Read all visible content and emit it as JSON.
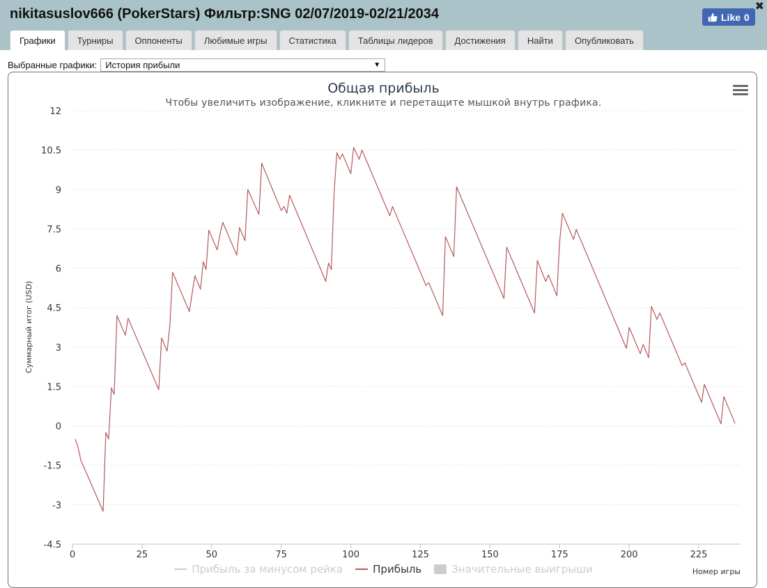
{
  "header": {
    "title": "nikitasuslov666 (PokerStars) Фильтр:SNG 02/07/2019-02/21/2034",
    "close_symbol": "✖",
    "like_label": "Like",
    "like_count": "0"
  },
  "tabs": [
    {
      "label": "Графики",
      "active": true
    },
    {
      "label": "Турниры",
      "active": false
    },
    {
      "label": "Оппоненты",
      "active": false
    },
    {
      "label": "Любимые игры",
      "active": false
    },
    {
      "label": "Статистика",
      "active": false
    },
    {
      "label": "Таблицы лидеров",
      "active": false
    },
    {
      "label": "Достижения",
      "active": false
    },
    {
      "label": "Найти",
      "active": false
    },
    {
      "label": "Опубликовать",
      "active": false
    }
  ],
  "selector": {
    "label": "Выбранные графики:",
    "value": "История прибыли"
  },
  "colors": {
    "series": "#b5575a",
    "grid": "#cccccc",
    "header_bg": "#aac3c9",
    "like_bg": "#4267b2"
  },
  "chart_data": {
    "type": "line",
    "title": "Общая прибыль",
    "subtitle": "Чтобы увеличить изображение, кликните и перетащите мышкой внутрь графика.",
    "xlabel": "Номер игры",
    "ylabel": "Суммарный итог (USD)",
    "xlim": [
      0,
      240
    ],
    "ylim": [
      -4.5,
      12
    ],
    "xticks": [
      0,
      25,
      50,
      75,
      100,
      125,
      150,
      175,
      200,
      225
    ],
    "yticks": [
      -4.5,
      -3,
      -1.5,
      0,
      1.5,
      3,
      4.5,
      6,
      7.5,
      9,
      10.5,
      12
    ],
    "grid": "horizontal-dotted",
    "legend": [
      {
        "name": "Прибыль за минусом рейка",
        "kind": "line",
        "visible": false
      },
      {
        "name": "Прибыль",
        "kind": "line",
        "visible": true
      },
      {
        "name": "Значительные выигрыши",
        "kind": "box",
        "visible": false
      }
    ],
    "series": [
      {
        "name": "Прибыль",
        "points": [
          [
            1,
            -0.5
          ],
          [
            2,
            -0.8
          ],
          [
            3,
            -1.3
          ],
          [
            11,
            -3.25
          ],
          [
            12,
            -0.25
          ],
          [
            13,
            -0.5
          ],
          [
            14,
            1.45
          ],
          [
            15,
            1.2
          ],
          [
            16,
            4.2
          ],
          [
            19,
            3.45
          ],
          [
            20,
            4.1
          ],
          [
            31,
            1.38
          ],
          [
            32,
            3.35
          ],
          [
            34,
            2.85
          ],
          [
            35,
            3.85
          ],
          [
            36,
            5.85
          ],
          [
            42,
            4.35
          ],
          [
            44,
            5.72
          ],
          [
            46,
            5.2
          ],
          [
            47,
            6.25
          ],
          [
            48,
            5.95
          ],
          [
            49,
            7.45
          ],
          [
            52,
            6.7
          ],
          [
            53,
            7.3
          ],
          [
            54,
            7.75
          ],
          [
            59,
            6.5
          ],
          [
            60,
            7.55
          ],
          [
            62,
            7.05
          ],
          [
            63,
            9.0
          ],
          [
            67,
            8.05
          ],
          [
            68,
            10.0
          ],
          [
            75,
            8.2
          ],
          [
            76,
            8.35
          ],
          [
            77,
            8.1
          ],
          [
            78,
            8.78
          ],
          [
            91,
            5.5
          ],
          [
            92,
            6.2
          ],
          [
            93,
            5.95
          ],
          [
            94,
            8.9
          ],
          [
            95,
            10.4
          ],
          [
            96,
            10.15
          ],
          [
            97,
            10.35
          ],
          [
            100,
            9.6
          ],
          [
            101,
            10.6
          ],
          [
            103,
            10.15
          ],
          [
            104,
            10.5
          ],
          [
            114,
            8.0
          ],
          [
            115,
            8.35
          ],
          [
            127,
            5.35
          ],
          [
            128,
            5.45
          ],
          [
            133,
            4.2
          ],
          [
            134,
            7.2
          ],
          [
            137,
            6.45
          ],
          [
            138,
            9.1
          ],
          [
            155,
            4.85
          ],
          [
            156,
            6.8
          ],
          [
            166,
            4.3
          ],
          [
            167,
            6.3
          ],
          [
            170,
            5.5
          ],
          [
            171,
            5.75
          ],
          [
            174,
            4.95
          ],
          [
            175,
            7.0
          ],
          [
            176,
            8.1
          ],
          [
            180,
            7.1
          ],
          [
            181,
            7.48
          ],
          [
            199,
            2.95
          ],
          [
            200,
            3.75
          ],
          [
            204,
            2.75
          ],
          [
            205,
            3.1
          ],
          [
            207,
            2.6
          ],
          [
            208,
            4.55
          ],
          [
            210,
            4.05
          ],
          [
            211,
            4.3
          ],
          [
            219,
            2.3
          ],
          [
            220,
            2.4
          ],
          [
            226,
            0.9
          ],
          [
            227,
            1.58
          ],
          [
            233,
            0.08
          ],
          [
            234,
            1.12
          ],
          [
            238,
            0.1
          ]
        ]
      }
    ]
  }
}
